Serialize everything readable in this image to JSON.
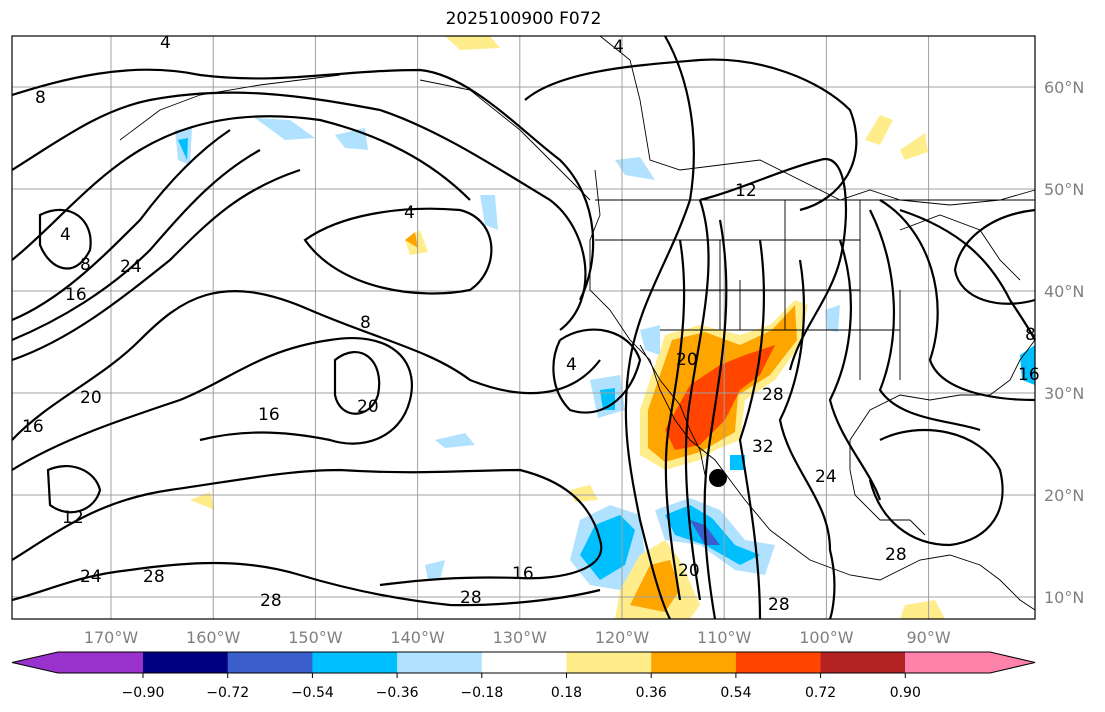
{
  "title": "2025100900 F072",
  "map": {
    "lon_labels": [
      "170°W",
      "160°W",
      "150°W",
      "140°W",
      "130°W",
      "120°W",
      "110°W",
      "100°W",
      "90°W"
    ],
    "lat_labels": [
      "60°N",
      "50°N",
      "40°N",
      "30°N",
      "20°N",
      "10°N"
    ],
    "contour_labels": [
      "4",
      "8",
      "4",
      "16",
      "24",
      "8",
      "20",
      "16",
      "20",
      "8",
      "4",
      "16",
      "12",
      "24",
      "28",
      "28",
      "28",
      "16",
      "20",
      "28",
      "4",
      "12",
      "20",
      "28",
      "32",
      "24",
      "28",
      "8",
      "16",
      "4"
    ],
    "marker": "black-dot"
  },
  "colorbar": {
    "colors": [
      "#9932cc",
      "#000080",
      "#3a5fcd",
      "#00bfff",
      "#b0e2ff",
      "#ffffff",
      "#ffec8b",
      "#ffa500",
      "#ff4500",
      "#b22222",
      "#ff82ab"
    ],
    "ticks": [
      "−0.90",
      "−0.72",
      "−0.54",
      "−0.36",
      "−0.18",
      "0.18",
      "0.36",
      "0.54",
      "0.72",
      "0.90"
    ]
  }
}
